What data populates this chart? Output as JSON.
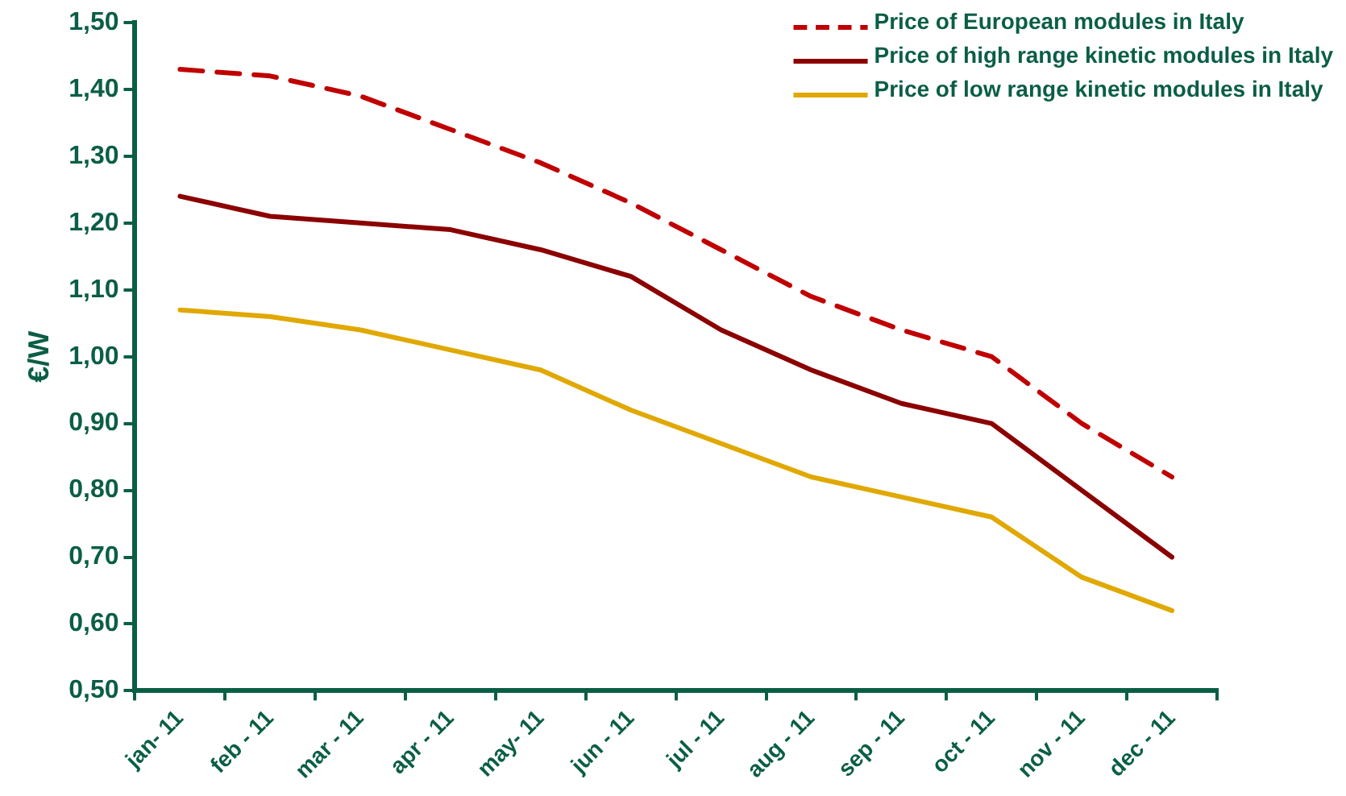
{
  "chart_data": {
    "type": "line",
    "ylabel": "€/W",
    "categories": [
      "jan- 11",
      "feb - 11",
      "mar - 11",
      "apr - 11",
      "may- 11",
      "jun - 11",
      "jul - 11",
      "aug - 11",
      "sep - 11",
      "oct - 11",
      "nov - 11",
      "dec - 11"
    ],
    "series": [
      {
        "name": "Price of European modules in Italy",
        "color": "#c00000",
        "line_style": "dashed",
        "values": [
          1.43,
          1.42,
          1.39,
          1.34,
          1.29,
          1.23,
          1.16,
          1.09,
          1.04,
          1.0,
          0.9,
          0.82
        ]
      },
      {
        "name": "Price of high range kinetic modules in Italy",
        "color": "#8b0000",
        "line_style": "solid",
        "values": [
          1.24,
          1.21,
          1.2,
          1.19,
          1.16,
          1.12,
          1.04,
          0.98,
          0.93,
          0.9,
          0.8,
          0.7
        ]
      },
      {
        "name": "Price of low range kinetic modules in Italy",
        "color": "#e0a800",
        "line_style": "solid",
        "values": [
          1.07,
          1.06,
          1.04,
          1.01,
          0.98,
          0.92,
          0.87,
          0.82,
          0.79,
          0.76,
          0.67,
          0.62
        ]
      }
    ],
    "ylim": [
      0.5,
      1.5
    ],
    "yticks": [
      {
        "value": 0.5,
        "label": "0,50"
      },
      {
        "value": 0.6,
        "label": "0,60"
      },
      {
        "value": 0.7,
        "label": "0,70"
      },
      {
        "value": 0.8,
        "label": "0,80"
      },
      {
        "value": 0.9,
        "label": "0,90"
      },
      {
        "value": 1.0,
        "label": "1,00"
      },
      {
        "value": 1.1,
        "label": "1,10"
      },
      {
        "value": 1.2,
        "label": "1,20"
      },
      {
        "value": 1.3,
        "label": "1,30"
      },
      {
        "value": 1.4,
        "label": "1,40"
      },
      {
        "value": 1.5,
        "label": "1,50"
      }
    ],
    "grid": false,
    "legend": "top right",
    "marker": "none"
  }
}
